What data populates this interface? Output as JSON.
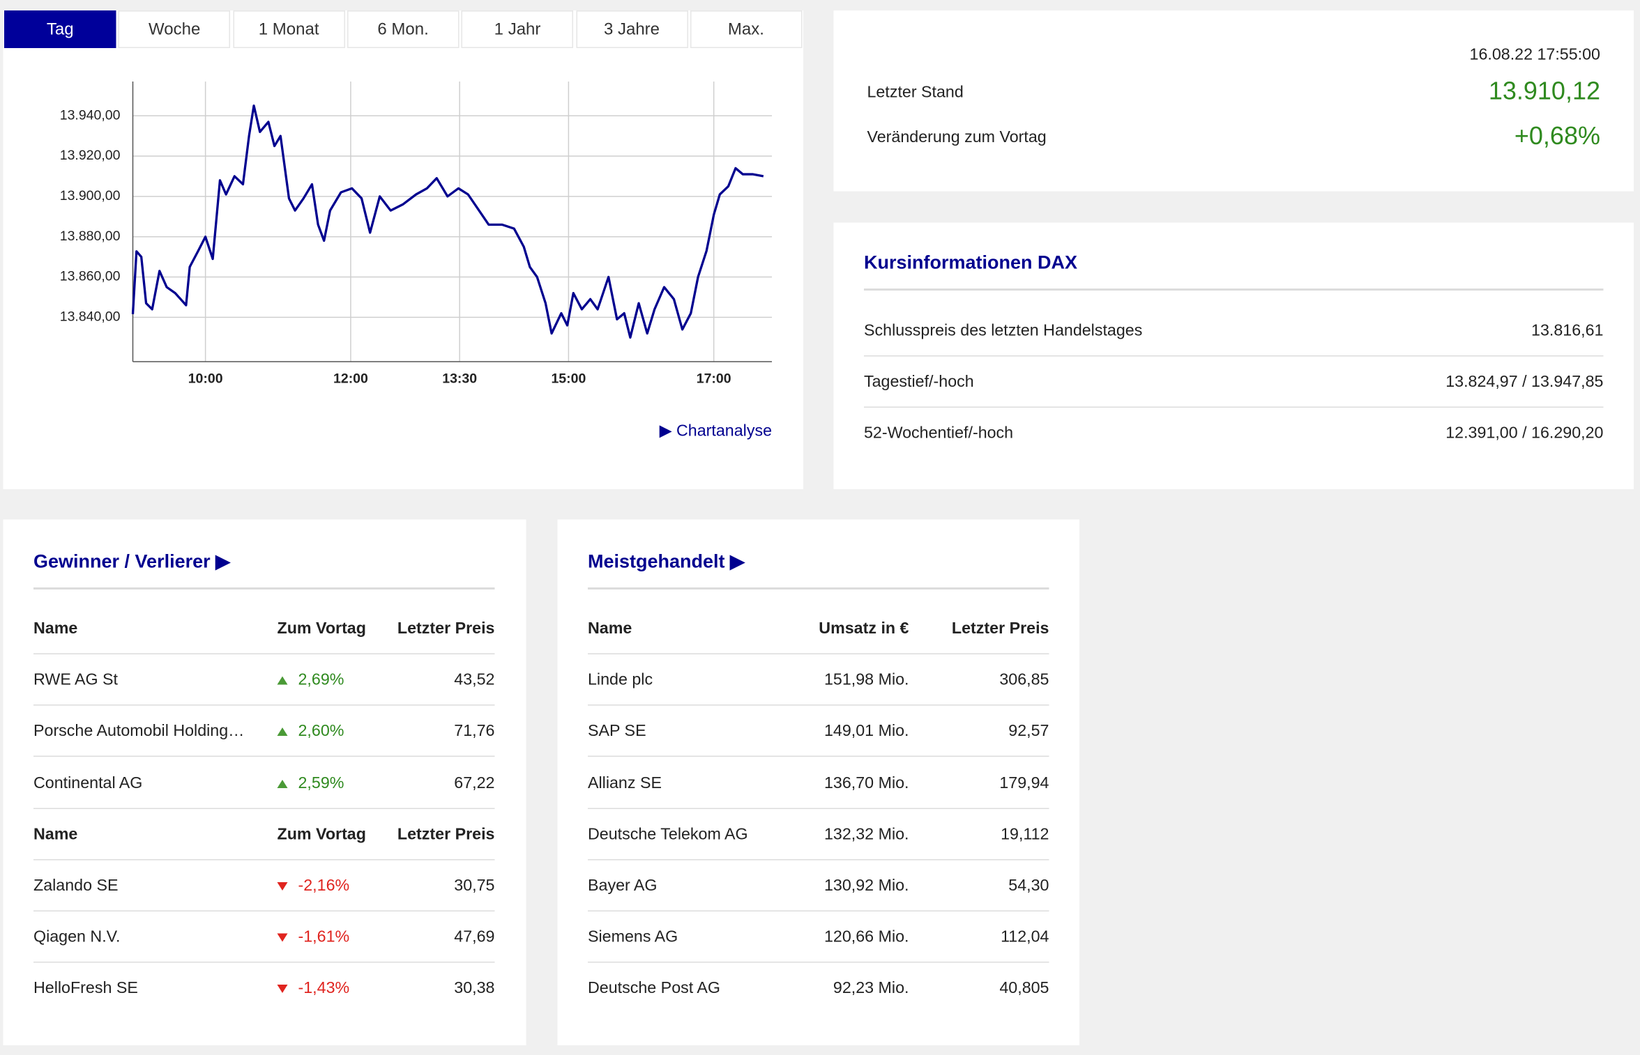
{
  "tabs": [
    "Tag",
    "Woche",
    "1 Monat",
    "6 Mon.",
    "1 Jahr",
    "3 Jahre",
    "Max."
  ],
  "active_tab": 0,
  "chart_data": {
    "type": "line",
    "x": [
      540,
      543,
      547,
      551,
      556,
      562,
      568,
      575,
      584,
      587,
      594,
      600,
      606,
      612,
      617,
      624,
      631,
      636,
      640,
      645,
      652,
      657,
      662,
      669,
      674,
      681,
      688,
      693,
      698,
      703,
      712,
      721,
      729,
      736,
      744,
      753,
      763,
      774,
      783,
      791,
      800,
      809,
      817,
      826,
      834,
      845,
      855,
      863,
      868,
      874,
      881,
      886,
      894,
      899,
      904,
      911,
      918,
      924,
      933,
      940,
      946,
      951,
      958,
      965,
      971,
      979,
      987,
      994,
      1001,
      1007,
      1014,
      1020,
      1025,
      1032,
      1038,
      1044,
      1052,
      1061
    ],
    "values": [
      13841.6,
      13872.7,
      13870,
      13847,
      13844,
      13863,
      13855,
      13852,
      13846,
      13865,
      13873,
      13880,
      13869,
      13908,
      13901,
      13910,
      13906,
      13930,
      13945,
      13932,
      13937,
      13925,
      13930,
      13899,
      13893,
      13899,
      13906,
      13886,
      13878,
      13893,
      13902,
      13904,
      13899,
      13882,
      13900,
      13893,
      13896,
      13901,
      13904,
      13909,
      13900,
      13904,
      13901,
      13893,
      13886,
      13886,
      13884,
      13875,
      13865,
      13860,
      13847,
      13832,
      13842,
      13836,
      13852,
      13844,
      13849,
      13844,
      13860,
      13839,
      13842,
      13830,
      13847,
      13832,
      13844,
      13855,
      13849,
      13834,
      13842,
      13860,
      13873,
      13891,
      13901,
      13905,
      13914,
      13911,
      13911,
      13910
    ],
    "color": "#00008f",
    "xlim": [
      540,
      1068
    ],
    "xticks": [
      {
        "value": 600,
        "label": "10:00"
      },
      {
        "value": 720,
        "label": "12:00"
      },
      {
        "value": 810,
        "label": "13:30"
      },
      {
        "value": 900,
        "label": "15:00"
      },
      {
        "value": 1020,
        "label": "17:00"
      }
    ],
    "ylim": [
      13818,
      13957
    ],
    "yticks": [
      {
        "value": 13840,
        "label": "13.840,00"
      },
      {
        "value": 13860,
        "label": "13.860,00"
      },
      {
        "value": 13880,
        "label": "13.880,00"
      },
      {
        "value": 13900,
        "label": "13.900,00"
      },
      {
        "value": 13920,
        "label": "13.920,00"
      },
      {
        "value": 13940,
        "label": "13.940,00"
      }
    ],
    "grid": true
  },
  "chart_link": "Chartanalyse",
  "quote": {
    "timestamp": "16.08.22 17:55:00",
    "rows": [
      {
        "label": "Letzter Stand",
        "value": "13.910,12"
      },
      {
        "label": "Veränderung zum Vortag",
        "value": "+0,68%"
      }
    ]
  },
  "kursinfo": {
    "title": "Kursinformationen DAX",
    "rows": [
      [
        "Schlusspreis des letzten Handelstages",
        "13.816,61"
      ],
      [
        "Tagestief/-hoch",
        "13.824,97 / 13.947,85"
      ],
      [
        "52-Wochentief/-hoch",
        "12.391,00 / 16.290,20"
      ]
    ]
  },
  "gainers_losers": {
    "title": "Gewinner / Verlierer",
    "sections": [
      {
        "direction": "up",
        "header": [
          "Name",
          "Zum Vortag",
          "Letzter Preis"
        ],
        "rows": [
          [
            "RWE AG St",
            "2,69%",
            "43,52"
          ],
          [
            "Porsche Automobil Holding…",
            "2,60%",
            "71,76"
          ],
          [
            "Continental AG",
            "2,59%",
            "67,22"
          ]
        ]
      },
      {
        "direction": "down",
        "header": [
          "Name",
          "Zum Vortag",
          "Letzter Preis"
        ],
        "rows": [
          [
            "Zalando SE",
            "-2,16%",
            "30,75"
          ],
          [
            "Qiagen N.V.",
            "-1,61%",
            "47,69"
          ],
          [
            "HelloFresh SE",
            "-1,43%",
            "30,38"
          ]
        ]
      }
    ]
  },
  "most_traded": {
    "title": "Meistgehandelt",
    "header": [
      "Name",
      "Umsatz in €",
      "Letzter Preis"
    ],
    "rows": [
      [
        "Linde plc",
        "151,98 Mio.",
        "306,85"
      ],
      [
        "SAP SE",
        "149,01 Mio.",
        "92,57"
      ],
      [
        "Allianz SE",
        "136,70 Mio.",
        "179,94"
      ],
      [
        "Deutsche Telekom AG",
        "132,32 Mio.",
        "19,112"
      ],
      [
        "Bayer AG",
        "130,92 Mio.",
        "54,30"
      ],
      [
        "Siemens AG",
        "120,66 Mio.",
        "112,04"
      ],
      [
        "Deutsche Post AG",
        "92,23 Mio.",
        "40,805"
      ]
    ]
  }
}
